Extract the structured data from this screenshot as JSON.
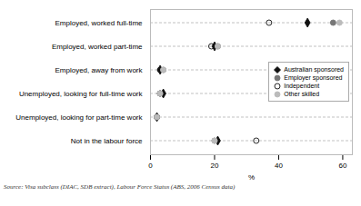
{
  "chart_data": {
    "type": "dot",
    "orientation": "horizontal",
    "categories": [
      "Employed, worked full-time",
      "Employed, worked part-time",
      "Employed, away from work",
      "Unemployed, looking for full-time work",
      "Unemployed, looking for part-time work",
      "Not in the labour force"
    ],
    "series": [
      {
        "name": "Australian sponsored",
        "color": "#111111",
        "marker": "diamond",
        "values": [
          49,
          20,
          3,
          4,
          2,
          21
        ]
      },
      {
        "name": "Employer sponsored",
        "color": "#777777",
        "marker": "circle",
        "values": [
          57,
          21,
          4,
          3,
          2,
          20
        ]
      },
      {
        "name": "Independent",
        "color": "#111111",
        "marker": "open_circle",
        "values": [
          37,
          19,
          3,
          3,
          2,
          33
        ]
      },
      {
        "name": "Other skilled",
        "color": "#bbbbbb",
        "marker": "circle",
        "values": [
          59,
          21,
          4,
          3,
          2,
          20
        ]
      }
    ],
    "xlabel": "%",
    "xlim": [
      0,
      63
    ],
    "xticks": [
      0,
      20,
      40,
      60
    ],
    "grid": "y",
    "legend": "right",
    "annotations": [
      "Source: Visa subclass (DIAC, SDB extract), Labour Force Status (ABS, 2006 Census data)"
    ]
  }
}
